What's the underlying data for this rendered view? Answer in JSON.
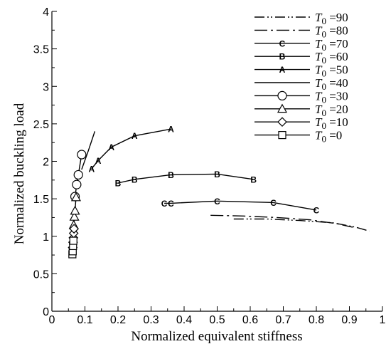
{
  "chart_data": {
    "type": "line",
    "xlabel": "Normalized equivalent stiffness",
    "ylabel": "Normalized buckling load",
    "xlim": [
      0,
      1
    ],
    "ylim": [
      0,
      4
    ],
    "xticks": [
      "0",
      "0.1",
      "0.2",
      "0.3",
      "0.4",
      "0.5",
      "0.6",
      "0.7",
      "0.8",
      "0.9",
      "1"
    ],
    "yticks": [
      "0",
      "0.5",
      "1",
      "1.5",
      "2",
      "2.5",
      "3",
      "3.5",
      "4"
    ],
    "grid": false,
    "legend_position": "top-right",
    "series": [
      {
        "name": "T0 =90",
        "symbol": "T",
        "subscript": "0",
        "suffix": "=90",
        "line": "dashdotdot",
        "marker": "none",
        "x": [
          0.55,
          0.65,
          0.75,
          0.85,
          0.92,
          0.96
        ],
        "y": [
          1.23,
          1.23,
          1.21,
          1.18,
          1.12,
          1.07
        ]
      },
      {
        "name": "T0 =80",
        "symbol": "T",
        "subscript": "0",
        "suffix": "=80",
        "line": "dashdot",
        "marker": "none",
        "x": [
          0.48,
          0.58,
          0.68,
          0.78,
          0.86,
          0.91
        ],
        "y": [
          1.28,
          1.27,
          1.25,
          1.22,
          1.17,
          1.12
        ]
      },
      {
        "name": "T0 =70",
        "symbol": "T",
        "subscript": "0",
        "suffix": "=70",
        "line": "solid",
        "marker": "C",
        "x": [
          0.34,
          0.36,
          0.5,
          0.67,
          0.8
        ],
        "y": [
          1.44,
          1.44,
          1.47,
          1.45,
          1.35
        ]
      },
      {
        "name": "T0 =60",
        "symbol": "T",
        "subscript": "0",
        "suffix": "=60",
        "line": "solid",
        "marker": "B",
        "x": [
          0.2,
          0.25,
          0.36,
          0.5,
          0.61
        ],
        "y": [
          1.71,
          1.76,
          1.82,
          1.83,
          1.76
        ]
      },
      {
        "name": "T0 =50",
        "symbol": "T",
        "subscript": "0",
        "suffix": "=50",
        "line": "solid",
        "marker": "A",
        "x": [
          0.12,
          0.14,
          0.18,
          0.25,
          0.36
        ],
        "y": [
          1.9,
          2.01,
          2.19,
          2.34,
          2.43
        ]
      },
      {
        "name": "T0 =40",
        "symbol": "T",
        "subscript": "0",
        "suffix": "=40",
        "line": "solid",
        "marker": "none",
        "x": [
          0.09,
          0.11,
          0.13
        ],
        "y": [
          1.89,
          2.14,
          2.4
        ]
      },
      {
        "name": "T0 =30",
        "symbol": "T",
        "subscript": "0",
        "suffix": "=30",
        "line": "solid",
        "marker": "circle",
        "x": [
          0.07,
          0.075,
          0.08,
          0.09
        ],
        "y": [
          1.53,
          1.69,
          1.82,
          2.09
        ]
      },
      {
        "name": "T0 =20",
        "symbol": "T",
        "subscript": "0",
        "suffix": "=20",
        "line": "solid",
        "marker": "triangle",
        "x": [
          0.066,
          0.068,
          0.07,
          0.073
        ],
        "y": [
          1.15,
          1.26,
          1.34,
          1.52
        ]
      },
      {
        "name": "T0 =10",
        "symbol": "T",
        "subscript": "0",
        "suffix": "=10",
        "line": "solid",
        "marker": "diamond",
        "x": [
          0.063,
          0.064,
          0.065,
          0.066,
          0.067
        ],
        "y": [
          0.85,
          0.92,
          0.98,
          1.04,
          1.1
        ]
      },
      {
        "name": "T0 =0",
        "symbol": "T",
        "subscript": "0",
        "suffix": "=0",
        "line": "solid",
        "marker": "square",
        "x": [
          0.062,
          0.063,
          0.064,
          0.065
        ],
        "y": [
          0.76,
          0.8,
          0.87,
          0.94
        ]
      }
    ]
  }
}
